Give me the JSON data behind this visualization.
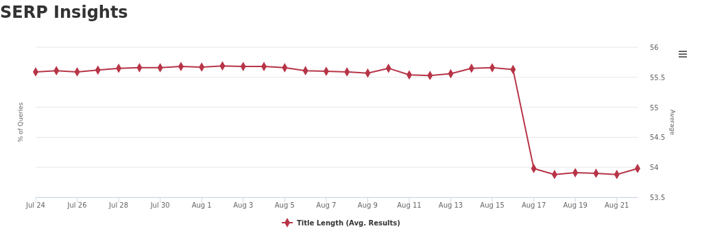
{
  "chart_data": {
    "type": "line",
    "title": "SERP Insights",
    "ylabel": "% of Queries",
    "y2label": "Average",
    "x": [
      "--07-24",
      "--07-25",
      "--07-26",
      "--07-27",
      "--07-28",
      "--07-29",
      "--07-30",
      "--07-31",
      "--08-01",
      "--08-02",
      "--08-03",
      "--08-04",
      "--08-05",
      "--08-06",
      "--08-07",
      "--08-08",
      "--08-09",
      "--08-10",
      "--08-11",
      "--08-12",
      "--08-13",
      "--08-14",
      "--08-15",
      "--08-16",
      "--08-17",
      "--08-18",
      "--08-19",
      "--08-20",
      "--08-21",
      "--08-22"
    ],
    "series": [
      {
        "name": "Title Length (Avg. Results)",
        "color": "#b73447",
        "axis": "y2",
        "values": [
          55.59,
          55.61,
          55.59,
          55.62,
          55.65,
          55.66,
          55.66,
          55.68,
          55.67,
          55.69,
          55.68,
          55.68,
          55.66,
          55.61,
          55.6,
          55.59,
          55.57,
          55.65,
          55.54,
          55.53,
          55.56,
          55.65,
          55.66,
          55.63,
          53.98,
          53.88,
          53.91,
          53.9,
          53.88,
          53.98
        ]
      }
    ],
    "xlim": [
      "--07-24",
      "--08-22"
    ],
    "xticks": [
      {
        "value": "--07-24",
        "label": "Jul 24"
      },
      {
        "value": "--07-26",
        "label": "Jul 26"
      },
      {
        "value": "--07-28",
        "label": "Jul 28"
      },
      {
        "value": "--07-30",
        "label": "Jul 30"
      },
      {
        "value": "--08-01",
        "label": "Aug 1"
      },
      {
        "value": "--08-03",
        "label": "Aug 3"
      },
      {
        "value": "--08-05",
        "label": "Aug 5"
      },
      {
        "value": "--08-07",
        "label": "Aug 7"
      },
      {
        "value": "--08-09",
        "label": "Aug 9"
      },
      {
        "value": "--08-11",
        "label": "Aug 11"
      },
      {
        "value": "--08-13",
        "label": "Aug 13"
      },
      {
        "value": "--08-15",
        "label": "Aug 15"
      },
      {
        "value": "--08-17",
        "label": "Aug 17"
      },
      {
        "value": "--08-19",
        "label": "Aug 19"
      },
      {
        "value": "--08-21",
        "label": "Aug 21"
      }
    ],
    "y2lim": [
      53.5,
      56
    ],
    "y2ticks": [
      53.5,
      54,
      54.5,
      55,
      55.5,
      56
    ],
    "grid": "y",
    "legend": "bottom",
    "marker": "diamond",
    "line_style": "solid"
  }
}
